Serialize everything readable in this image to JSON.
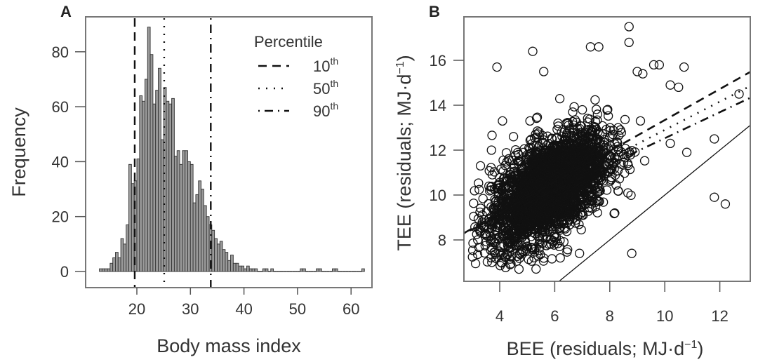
{
  "chart_data": [
    {
      "panel": "A",
      "type": "bar",
      "title": "",
      "xlabel": "Body mass index",
      "ylabel": "Frequency",
      "xlim": [
        12,
        63
      ],
      "ylim": [
        0,
        92
      ],
      "xticks": [
        20,
        30,
        40,
        50,
        60
      ],
      "yticks": [
        0,
        20,
        40,
        60,
        80
      ],
      "bin_width": 0.5,
      "bin_start": 13,
      "values": [
        1,
        1,
        1,
        1,
        3,
        5,
        7,
        5,
        12,
        10,
        17,
        39,
        32,
        33,
        41,
        64,
        62,
        70,
        89,
        79,
        61,
        66,
        74,
        48,
        67,
        62,
        61,
        63,
        42,
        44,
        39,
        44,
        44,
        40,
        39,
        25,
        28,
        33,
        30,
        24,
        20,
        17,
        15,
        12,
        10,
        11,
        8,
        7,
        4,
        6,
        3,
        3,
        2,
        2,
        1,
        2,
        1,
        1,
        1,
        0,
        0,
        1,
        1,
        0,
        1,
        0,
        0,
        0,
        0,
        0,
        0,
        0,
        0,
        0,
        0,
        1,
        1,
        0,
        0,
        0,
        0,
        1,
        1,
        0,
        0,
        0,
        0,
        1,
        1,
        0,
        0,
        0,
        0,
        0,
        0,
        0,
        0,
        0,
        1
      ],
      "percentile_lines": [
        {
          "label": "10th",
          "value": 19.6,
          "style": "dashed"
        },
        {
          "label": "50th",
          "value": 25.1,
          "style": "dotted"
        },
        {
          "label": "90th",
          "value": 33.8,
          "style": "dotdash"
        }
      ],
      "legend": {
        "title": "Percentile",
        "position": "top-right",
        "entries": [
          {
            "num": "10",
            "sup": "th",
            "style": "dashed"
          },
          {
            "num": "50",
            "sup": "th",
            "style": "dotted"
          },
          {
            "num": "90",
            "sup": "th",
            "style": "dotdash"
          }
        ]
      },
      "bar_color": "#9a9a9a"
    },
    {
      "panel": "B",
      "type": "scatter",
      "title": "",
      "xlabel_main": "BEE (residuals; MJ·d",
      "xlabel_sup": "−1",
      "xlabel_end": ")",
      "ylabel_main": "TEE (residuals; MJ·d",
      "ylabel_sup": "−1",
      "ylabel_end": ")",
      "xlim": [
        2.7,
        13.1
      ],
      "ylim": [
        6.16,
        17.9
      ],
      "xticks": [
        4,
        6,
        8,
        10,
        12
      ],
      "yticks": [
        8,
        10,
        12,
        14,
        16
      ],
      "point_cloud": {
        "n": 3000,
        "center": [
          5.8,
          10.3
        ],
        "sd": [
          1.05,
          1.25
        ],
        "correlation": 0.55,
        "marker": "open-circle"
      },
      "outliers": [
        [
          8.7,
          17.5
        ],
        [
          8.7,
          16.8
        ],
        [
          7.3,
          16.6
        ],
        [
          7.6,
          16.6
        ],
        [
          5.2,
          16.4
        ],
        [
          3.9,
          15.7
        ],
        [
          5.6,
          15.5
        ],
        [
          9.6,
          15.8
        ],
        [
          9.8,
          15.8
        ],
        [
          9.0,
          15.5
        ],
        [
          9.2,
          15.4
        ],
        [
          10.7,
          15.7
        ],
        [
          10.2,
          14.9
        ],
        [
          10.5,
          14.8
        ],
        [
          12.7,
          14.5
        ],
        [
          11.8,
          12.5
        ],
        [
          10.2,
          12.3
        ],
        [
          10.8,
          11.9
        ],
        [
          11.8,
          9.9
        ],
        [
          12.2,
          9.6
        ],
        [
          8.8,
          7.4
        ],
        [
          3.3,
          11.3
        ],
        [
          3.7,
          12.0
        ],
        [
          5.1,
          13.3
        ],
        [
          4.1,
          13.3
        ],
        [
          4.5,
          12.6
        ],
        [
          3.2,
          8.0
        ],
        [
          4.7,
          6.7
        ],
        [
          6.2,
          7.2
        ],
        [
          6.9,
          7.4
        ]
      ],
      "lines": [
        {
          "label": "10th",
          "style": "dashed",
          "intercept": 6.44,
          "slope": 0.69
        },
        {
          "label": "50th",
          "style": "dotted",
          "intercept": 6.6,
          "slope": 0.63
        },
        {
          "label": "90th",
          "style": "dotdash",
          "intercept": 6.73,
          "slope": 0.58
        },
        {
          "label": "identity",
          "style": "solid",
          "intercept": 0.0,
          "slope": 1.0
        }
      ]
    }
  ],
  "panels": {
    "a_label": "A",
    "b_label": "B"
  }
}
